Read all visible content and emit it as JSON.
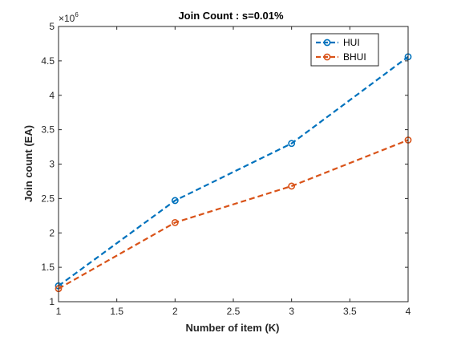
{
  "chart_data": {
    "type": "line",
    "title": "Join Count : s=0.01%",
    "xlabel": "Number of item (K)",
    "ylabel": "Join count (EA)",
    "xlim": [
      1,
      4
    ],
    "ylim": [
      1,
      5
    ],
    "xticks": [
      1,
      1.5,
      2,
      2.5,
      3,
      3.5,
      4
    ],
    "xtick_labels": [
      "1",
      "1.5",
      "2",
      "2.5",
      "3",
      "3.5",
      "4"
    ],
    "yticks": [
      1,
      1.5,
      2,
      2.5,
      3,
      3.5,
      4,
      4.5,
      5
    ],
    "ytick_labels": [
      "1",
      "1.5",
      "2",
      "2.5",
      "3",
      "3.5",
      "4",
      "4.5",
      "5"
    ],
    "y_exponent_base": "×10",
    "y_exponent_power": "6",
    "y_multiplier": 1000000,
    "x": [
      1,
      2,
      3,
      4
    ],
    "series": [
      {
        "name": "HUI",
        "color": "#0072BD",
        "values": [
          1.23,
          2.47,
          3.3,
          4.56
        ]
      },
      {
        "name": "BHUI",
        "color": "#D95319",
        "values": [
          1.19,
          2.15,
          2.68,
          3.35
        ]
      }
    ],
    "legend_position": "top-right",
    "grid": false,
    "line_style": "dashed",
    "marker": "circle"
  }
}
